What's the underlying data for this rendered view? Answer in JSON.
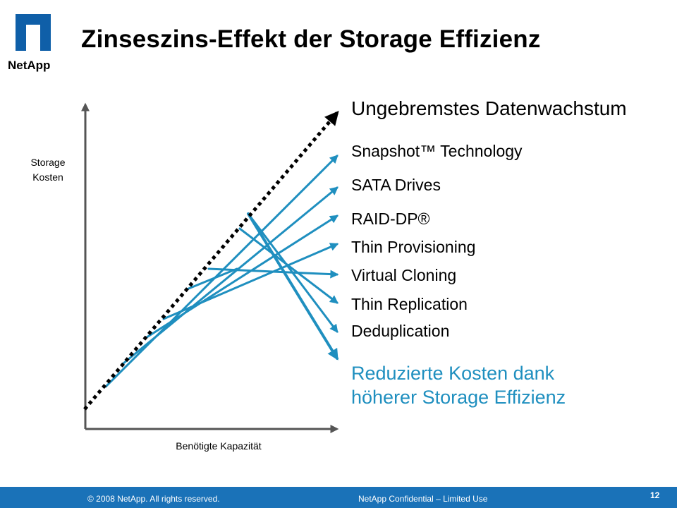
{
  "brand": {
    "logo_text": "NetApp",
    "color": "#0f5fa8"
  },
  "slide": {
    "title": "Zinseszins-Effekt der Storage Effizienz"
  },
  "axes": {
    "y_label_line1": "Storage",
    "y_label_line2": "Kosten",
    "x_label": "Benötigte Kapazität"
  },
  "labels": {
    "top": "Ungebremstes Datenwachstum",
    "items": [
      "Snapshot™ Technology",
      "SATA Drives",
      "RAID-DP®",
      "Thin Provisioning",
      "Virtual Cloning",
      "Thin Replication",
      "Deduplication"
    ],
    "result_line1": "Reduzierte Kosten dank",
    "result_line2": "höherer Storage Effizienz"
  },
  "colors": {
    "arrow": "#1f8fbf",
    "dotted": "#000000",
    "result": "#1f8fbf",
    "footer": "#1a72b8"
  },
  "footer": {
    "copyright": "© 2008 NetApp.  All rights reserved.",
    "confidential": "NetApp Confidential – Limited Use",
    "page": "12"
  }
}
